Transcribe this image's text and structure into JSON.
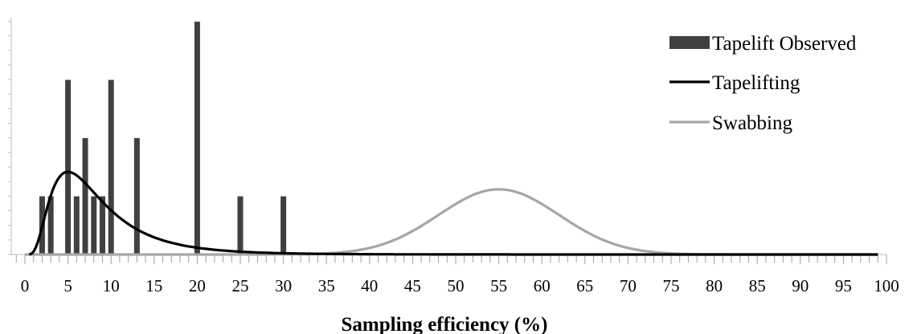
{
  "chart_data": {
    "type": "bar",
    "title": "",
    "xlabel": "Sampling efficiency (%)",
    "ylabel": "",
    "xlim": [
      -1,
      100
    ],
    "x_tick_labels": [
      0,
      5,
      10,
      15,
      20,
      25,
      30,
      35,
      40,
      45,
      50,
      55,
      60,
      65,
      70,
      75,
      80,
      85,
      90,
      95,
      100
    ],
    "ylim": [
      0,
      4
    ],
    "y_tick_labels_shown": false,
    "grid": false,
    "legend_position": "top-right",
    "series": [
      {
        "name": "Tapelift Observed",
        "kind": "bar",
        "color": "#404040",
        "x": [
          2,
          3,
          5,
          6,
          7,
          8,
          9,
          10,
          13,
          20,
          25,
          30
        ],
        "values": [
          1,
          1,
          3,
          1,
          2,
          1,
          1,
          3,
          2,
          4,
          1,
          1
        ]
      },
      {
        "name": "Tapelifting",
        "kind": "line",
        "color": "#000000",
        "distribution": "lognormal",
        "mode": 5,
        "peak_value": 1.42,
        "x": [
          1,
          2,
          3,
          4,
          5,
          6,
          7,
          8,
          9,
          10,
          12,
          14,
          16,
          18,
          20,
          22,
          24,
          26,
          28,
          30,
          32,
          34,
          36,
          38,
          40
        ],
        "values": [
          0.18,
          0.85,
          1.22,
          1.38,
          1.42,
          1.39,
          1.33,
          1.24,
          1.15,
          1.05,
          0.85,
          0.68,
          0.53,
          0.41,
          0.31,
          0.23,
          0.17,
          0.12,
          0.09,
          0.06,
          0.04,
          0.03,
          0.02,
          0.01,
          0.005
        ]
      },
      {
        "name": "Swabbing",
        "kind": "line",
        "color": "#a6a6a6",
        "distribution": "normal",
        "mean": 55,
        "sd": 7,
        "peak_value": 1.12,
        "x": [
          35,
          40,
          45,
          50,
          55,
          60,
          65,
          70,
          75
        ],
        "values": [
          0.02,
          0.11,
          0.4,
          0.87,
          1.12,
          0.87,
          0.4,
          0.11,
          0.02
        ]
      }
    ]
  }
}
